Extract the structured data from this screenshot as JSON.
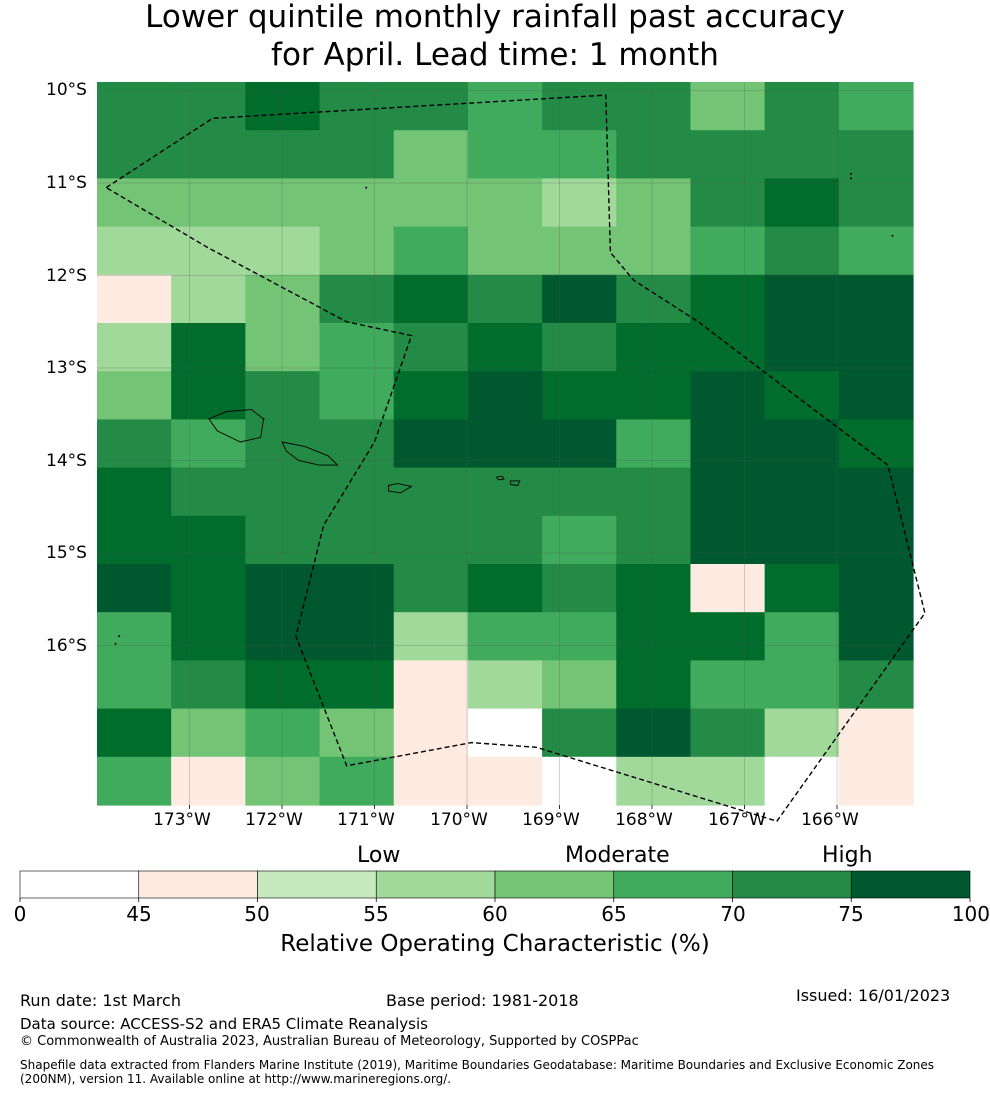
{
  "title": {
    "line1": "Lower quintile monthly rainfall past accuracy",
    "line2": "for April. Lead time: 1 month"
  },
  "map": {
    "lat_labels": [
      "10°S",
      "11°S",
      "12°S",
      "13°S",
      "14°S",
      "15°S",
      "16°S"
    ],
    "lon_labels": [
      "173°W",
      "172°W",
      "171°W",
      "170°W",
      "169°W",
      "168°W",
      "167°W",
      "166°W"
    ],
    "grid_rows": [
      [
        6,
        6,
        7,
        6,
        6,
        5,
        6,
        6,
        4,
        6,
        5
      ],
      [
        6,
        6,
        6,
        6,
        4,
        5,
        5,
        6,
        6,
        6,
        6
      ],
      [
        4,
        4,
        4,
        4,
        4,
        4,
        3,
        4,
        6,
        7,
        6
      ],
      [
        3,
        3,
        3,
        4,
        5,
        4,
        4,
        4,
        5,
        6,
        5
      ],
      [
        1,
        3,
        4,
        6,
        7,
        6,
        8,
        6,
        7,
        8,
        8
      ],
      [
        3,
        7,
        4,
        5,
        6,
        7,
        6,
        7,
        7,
        8,
        8
      ],
      [
        4,
        7,
        6,
        5,
        7,
        8,
        7,
        7,
        8,
        7,
        8
      ],
      [
        6,
        5,
        6,
        6,
        8,
        8,
        8,
        5,
        8,
        8,
        7
      ],
      [
        7,
        6,
        6,
        6,
        6,
        6,
        6,
        6,
        8,
        8,
        8
      ],
      [
        7,
        7,
        6,
        6,
        6,
        6,
        5,
        6,
        8,
        8,
        8
      ],
      [
        8,
        7,
        8,
        8,
        6,
        7,
        6,
        7,
        1,
        7,
        8
      ],
      [
        5,
        7,
        8,
        8,
        3,
        5,
        5,
        7,
        7,
        5,
        8
      ],
      [
        5,
        6,
        7,
        7,
        1,
        3,
        4,
        7,
        5,
        5,
        6
      ],
      [
        7,
        4,
        5,
        4,
        1,
        0,
        6,
        8,
        6,
        3,
        1
      ],
      [
        5,
        1,
        4,
        5,
        1,
        1,
        0,
        3,
        3,
        0,
        1
      ]
    ],
    "eez_boundary": [
      [
        -173.9,
        -11.05
      ],
      [
        -172.75,
        -10.3
      ],
      [
        -168.5,
        -10.05
      ],
      [
        -168.45,
        -11.75
      ],
      [
        -168.2,
        -12.05
      ],
      [
        -167.5,
        -12.5
      ],
      [
        -166.25,
        -13.45
      ],
      [
        -165.45,
        -14.05
      ],
      [
        -165.05,
        -15.65
      ],
      [
        -166.65,
        -17.9
      ],
      [
        -169.25,
        -17.1
      ],
      [
        -169.95,
        -17.05
      ],
      [
        -171.3,
        -17.3
      ],
      [
        -171.85,
        -15.9
      ],
      [
        -171.55,
        -14.7
      ],
      [
        -171.0,
        -13.8
      ],
      [
        -170.6,
        -12.65
      ],
      [
        -171.3,
        -12.5
      ],
      [
        -172.8,
        -11.7
      ],
      [
        -173.9,
        -11.05
      ]
    ],
    "islands": [
      [
        [
          -172.79,
          -13.55
        ],
        [
          -172.6,
          -13.47
        ],
        [
          -172.33,
          -13.45
        ],
        [
          -172.2,
          -13.55
        ],
        [
          -172.23,
          -13.75
        ],
        [
          -172.45,
          -13.8
        ],
        [
          -172.7,
          -13.68
        ]
      ],
      [
        [
          -172.0,
          -13.8
        ],
        [
          -171.75,
          -13.85
        ],
        [
          -171.5,
          -13.95
        ],
        [
          -171.4,
          -14.05
        ],
        [
          -171.6,
          -14.05
        ],
        [
          -171.82,
          -14.0
        ],
        [
          -171.95,
          -13.9
        ]
      ],
      [
        [
          -170.85,
          -14.27
        ],
        [
          -170.75,
          -14.25
        ],
        [
          -170.6,
          -14.28
        ],
        [
          -170.72,
          -14.35
        ],
        [
          -170.85,
          -14.33
        ]
      ],
      [
        [
          -169.68,
          -14.18
        ],
        [
          -169.62,
          -14.17
        ],
        [
          -169.6,
          -14.2
        ],
        [
          -169.66,
          -14.21
        ]
      ],
      [
        [
          -169.53,
          -14.22
        ],
        [
          -169.43,
          -14.22
        ],
        [
          -169.45,
          -14.27
        ],
        [
          -169.53,
          -14.26
        ]
      ]
    ],
    "islets": [
      [
        -171.09,
        -11.05
      ],
      [
        -165.85,
        -10.9
      ],
      [
        -165.85,
        -10.95
      ],
      [
        -165.4,
        -11.57
      ],
      [
        -172.2,
        -13.55
      ],
      [
        -173.76,
        -15.9
      ],
      [
        -173.8,
        -15.98
      ]
    ]
  },
  "legend": {
    "categories": [
      "Low",
      "Moderate",
      "High"
    ],
    "ticks": [
      "0",
      "45",
      "50",
      "55",
      "60",
      "65",
      "70",
      "75",
      "100"
    ],
    "colors": [
      "#ffffff",
      "#fdebe2",
      "#c7e9c0",
      "#a1d99b",
      "#74c476",
      "#41ab5d",
      "#238b45",
      "#006d2c",
      "#00582f"
    ],
    "title": "Relative Operating Characteristic (%)"
  },
  "footer": {
    "run_date": "Run date: 1st March",
    "base_period": "Base period: 1981-2018",
    "issued": "Issued: 16/01/2023",
    "data_source": "Data source: ACCESS-S2 and ERA5 Climate Reanalysis",
    "copyright": "© Commonwealth of Australia 2023, Australian Bureau of Meteorology, Supported by COSPPac",
    "shapefile_line1": "Shapefile data extracted from Flanders Marine Institute (2019), Maritime Boundaries Geodatabase: Maritime Boundaries and Exclusive Economic Zones",
    "shapefile_line2": "(200NM), version 11. Available online at http://www.marineregions.org/."
  }
}
